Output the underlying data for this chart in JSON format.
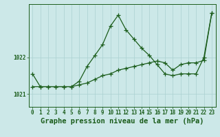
{
  "title": "Graphe pression niveau de la mer (hPa)",
  "x_labels": [
    "0",
    "1",
    "2",
    "3",
    "4",
    "5",
    "6",
    "7",
    "8",
    "9",
    "10",
    "11",
    "12",
    "13",
    "14",
    "15",
    "16",
    "17",
    "18",
    "19",
    "20",
    "21",
    "22",
    "23"
  ],
  "x_values": [
    0,
    1,
    2,
    3,
    4,
    5,
    6,
    7,
    8,
    9,
    10,
    11,
    12,
    13,
    14,
    15,
    16,
    17,
    18,
    19,
    20,
    21,
    22,
    23
  ],
  "line1_y": [
    1021.55,
    1021.2,
    1021.2,
    1021.2,
    1021.2,
    1021.2,
    1021.35,
    1021.75,
    1022.05,
    1022.35,
    1022.85,
    1023.15,
    1022.75,
    1022.5,
    1022.25,
    1022.05,
    1021.8,
    1021.55,
    1021.5,
    1021.55,
    1021.55,
    1021.55,
    1022.0,
    1023.2
  ],
  "line2_y": [
    1021.2,
    1021.2,
    1021.2,
    1021.2,
    1021.2,
    1021.2,
    1021.25,
    1021.3,
    1021.4,
    1021.5,
    1021.55,
    1021.65,
    1021.7,
    1021.75,
    1021.8,
    1021.85,
    1021.9,
    1021.85,
    1021.65,
    1021.8,
    1021.85,
    1021.85,
    1021.92,
    1023.2
  ],
  "line_color": "#1a5c1a",
  "bg_color": "#cce8e8",
  "grid_color": "#aad0d0",
  "ylim_min": 1020.65,
  "ylim_max": 1023.45,
  "ytick_values": [
    1021.0,
    1022.0
  ],
  "title_fontsize": 7.0,
  "tick_fontsize": 5.5,
  "xlabel_fontsize": 7.5
}
